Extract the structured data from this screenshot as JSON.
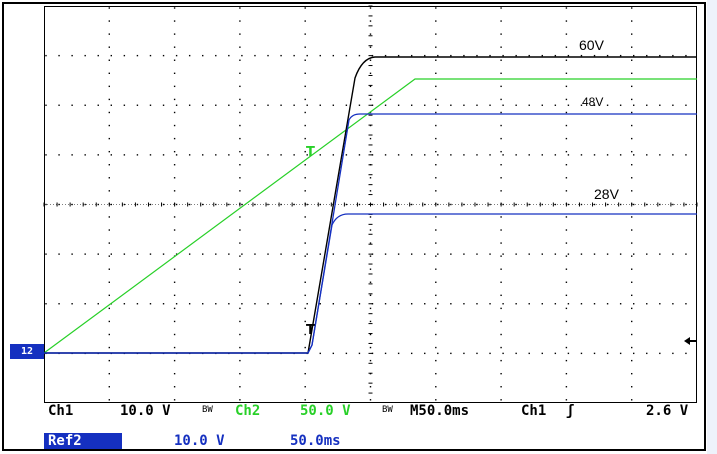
{
  "annotations": {
    "label_60v": "60V",
    "label_48v": "48V",
    "label_28v": "28V"
  },
  "markers": {
    "ground_marker": "12",
    "trigger_symbol": "T"
  },
  "status_bar": {
    "ch1_label": "Ch1",
    "ch1_scale": "10.0 V",
    "bw_symbol": "BW",
    "ch2_label": "Ch2",
    "ch2_scale": "50.0 V",
    "timebase": "M50.0ms",
    "trigger_source": "Ch1",
    "trigger_slope": "ʃ",
    "trigger_level": "2.6 V"
  },
  "ref_bar": {
    "ref_label": "Ref2",
    "ref_scale": "10.0 V",
    "ref_time": "50.0ms"
  },
  "colors": {
    "trace_black": "#000000",
    "trace_green": "#28d028",
    "trace_blue": "#1530c0",
    "ref_badge": "#1530c0"
  }
}
